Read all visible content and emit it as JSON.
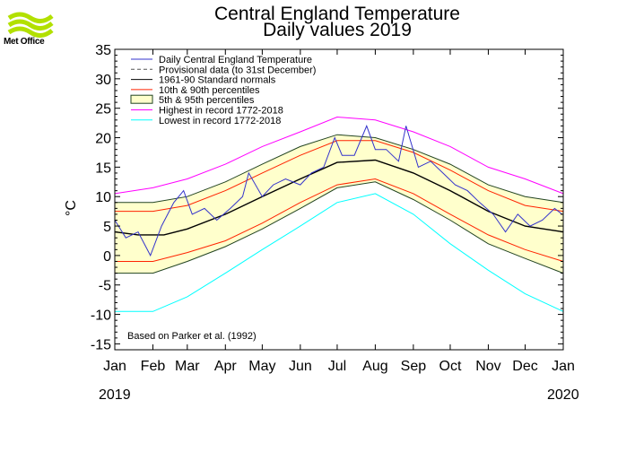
{
  "header": {
    "logo_label": "Met Office",
    "title_line1": "Central England Temperature",
    "title_line2": "Daily values 2019"
  },
  "footer": {
    "year_start": "2019",
    "year_end": "2020"
  },
  "colors": {
    "daily": "#3333cc",
    "provisional": "#555555",
    "normal": "#000000",
    "p10_90": "#ff2200",
    "p5_95_fill": "#ffffcc",
    "p5_95_line": "#224422",
    "highest": "#ff00ff",
    "lowest": "#00ffff",
    "logo": "#b2e000"
  },
  "chart_data": {
    "type": "line",
    "title": "Central England Temperature",
    "subtitle": "Daily values 2019",
    "ylabel": "°C",
    "xlabel": "",
    "ylim": [
      -16,
      35
    ],
    "yticks": [
      35,
      30,
      25,
      20,
      15,
      10,
      5,
      0,
      -5,
      -10,
      -15
    ],
    "xlim": [
      "2019-01-01",
      "2020-01-01"
    ],
    "months": [
      "Jan",
      "Feb",
      "Mar",
      "Apr",
      "May",
      "Jun",
      "Jul",
      "Aug",
      "Sep",
      "Oct",
      "Nov",
      "Dec",
      "Jan"
    ],
    "note": "Based on Parker et al. (1992)",
    "legend_position": "top-left",
    "legend": [
      "Daily Central England Temperature",
      "Provisional data (to 31st December)",
      "1961-90 Standard normals",
      "10th & 90th percentiles",
      "5th & 95th percentiles",
      "Highest in record 1772-2018",
      "Lowest in record 1772-2018"
    ],
    "series": [
      {
        "name": "1961-90 Standard normals",
        "x": [
          "2019-01-01",
          "2019-01-20",
          "2019-02-10",
          "2019-03-01",
          "2019-04-01",
          "2019-05-01",
          "2019-06-01",
          "2019-07-01",
          "2019-08-01",
          "2019-09-01",
          "2019-10-01",
          "2019-11-01",
          "2019-12-01",
          "2020-01-01"
        ],
        "values": [
          4.0,
          3.5,
          3.5,
          4.5,
          7.0,
          10.0,
          13.0,
          15.8,
          16.2,
          14.0,
          11.0,
          7.5,
          5.0,
          4.0
        ]
      },
      {
        "name": "90th percentile",
        "x": [
          "2019-01-01",
          "2019-02-01",
          "2019-03-01",
          "2019-04-01",
          "2019-05-01",
          "2019-06-01",
          "2019-07-01",
          "2019-08-01",
          "2019-09-01",
          "2019-10-01",
          "2019-11-01",
          "2019-12-01",
          "2020-01-01"
        ],
        "values": [
          7.5,
          7.5,
          8.5,
          11.0,
          14.0,
          17.0,
          19.5,
          19.5,
          17.5,
          14.5,
          11.0,
          8.5,
          7.5
        ]
      },
      {
        "name": "10th percentile",
        "x": [
          "2019-01-01",
          "2019-02-01",
          "2019-03-01",
          "2019-04-01",
          "2019-05-01",
          "2019-06-01",
          "2019-07-01",
          "2019-08-01",
          "2019-09-01",
          "2019-10-01",
          "2019-11-01",
          "2019-12-01",
          "2020-01-01"
        ],
        "values": [
          -1.0,
          -1.0,
          0.5,
          2.5,
          5.5,
          9.0,
          12.0,
          13.0,
          10.5,
          7.0,
          3.5,
          1.0,
          -1.0
        ]
      },
      {
        "name": "95th percentile",
        "x": [
          "2019-01-01",
          "2019-02-01",
          "2019-03-01",
          "2019-04-01",
          "2019-05-01",
          "2019-06-01",
          "2019-07-01",
          "2019-08-01",
          "2019-09-01",
          "2019-10-01",
          "2019-11-01",
          "2019-12-01",
          "2020-01-01"
        ],
        "values": [
          9.0,
          9.0,
          10.0,
          12.5,
          15.5,
          18.5,
          20.5,
          20.0,
          18.0,
          15.5,
          12.0,
          10.0,
          9.0
        ]
      },
      {
        "name": "5th percentile",
        "x": [
          "2019-01-01",
          "2019-02-01",
          "2019-03-01",
          "2019-04-01",
          "2019-05-01",
          "2019-06-01",
          "2019-07-01",
          "2019-08-01",
          "2019-09-01",
          "2019-10-01",
          "2019-11-01",
          "2019-12-01",
          "2020-01-01"
        ],
        "values": [
          -3.0,
          -3.0,
          -1.0,
          1.5,
          4.5,
          8.0,
          11.5,
          12.5,
          9.5,
          6.0,
          2.0,
          -0.5,
          -3.0
        ]
      },
      {
        "name": "Highest in record 1772-2018",
        "x": [
          "2019-01-01",
          "2019-02-01",
          "2019-03-01",
          "2019-04-01",
          "2019-05-01",
          "2019-06-01",
          "2019-07-01",
          "2019-08-01",
          "2019-09-01",
          "2019-10-01",
          "2019-11-01",
          "2019-12-01",
          "2020-01-01"
        ],
        "values": [
          10.5,
          11.5,
          13.0,
          15.5,
          18.5,
          21.0,
          23.5,
          23.0,
          21.0,
          18.5,
          15.0,
          13.0,
          10.5
        ]
      },
      {
        "name": "Lowest in record 1772-2018",
        "x": [
          "2019-01-01",
          "2019-02-01",
          "2019-03-01",
          "2019-04-01",
          "2019-05-01",
          "2019-06-01",
          "2019-07-01",
          "2019-08-01",
          "2019-09-01",
          "2019-10-01",
          "2019-11-01",
          "2019-12-01",
          "2020-01-01"
        ],
        "values": [
          -9.5,
          -9.5,
          -7.0,
          -3.0,
          1.0,
          5.0,
          9.0,
          10.5,
          7.0,
          2.0,
          -2.5,
          -6.5,
          -9.5
        ]
      },
      {
        "name": "Daily Central England Temperature",
        "x": [
          "2019-01-01",
          "2019-01-10",
          "2019-01-20",
          "2019-01-30",
          "2019-02-08",
          "2019-02-18",
          "2019-02-26",
          "2019-03-05",
          "2019-03-15",
          "2019-03-25",
          "2019-04-05",
          "2019-04-15",
          "2019-04-20",
          "2019-05-01",
          "2019-05-10",
          "2019-05-20",
          "2019-06-01",
          "2019-06-10",
          "2019-06-20",
          "2019-06-29",
          "2019-07-05",
          "2019-07-15",
          "2019-07-25",
          "2019-08-01",
          "2019-08-10",
          "2019-08-20",
          "2019-08-26",
          "2019-09-05",
          "2019-09-15",
          "2019-09-25",
          "2019-10-05",
          "2019-10-15",
          "2019-10-25",
          "2019-11-05",
          "2019-11-15",
          "2019-11-25",
          "2019-12-05",
          "2019-12-15",
          "2019-12-25",
          "2019-12-31"
        ],
        "values": [
          6,
          3,
          4,
          0,
          5,
          9,
          11,
          7,
          8,
          6,
          8,
          10,
          14,
          10,
          12,
          13,
          12,
          14,
          15,
          20,
          17,
          17,
          22,
          18,
          18,
          16,
          22,
          15,
          16,
          14,
          12,
          11,
          9,
          7,
          4,
          7,
          5,
          6,
          8,
          7
        ]
      }
    ]
  }
}
